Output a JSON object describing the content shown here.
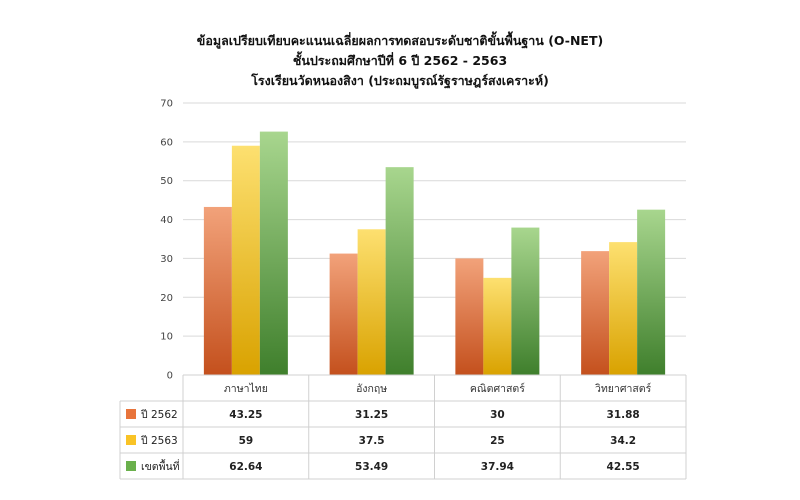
{
  "chart_data": {
    "type": "bar",
    "title": [
      "ข้อมูลเปรียบเทียบคะแนนเฉลี่ยผลการทดสอบระดับชาติขั้นพื้นฐาน (O-NET)",
      "ชั้นประถมศึกษาปีที่ 6 ปี 2562 - 2563",
      "โรงเรียนวัดหนองสิงา (ประถมบูรณ์รัฐราษฎร์สงเคราะห์)"
    ],
    "categories": [
      "ภาษาไทย",
      "อังกฤษ",
      "คณิตศาสตร์",
      "วิทยาศาสตร์"
    ],
    "series": [
      {
        "name": "ปี 2562",
        "values": [
          43.25,
          31.25,
          30,
          31.88
        ],
        "color": "#e8743b",
        "value_labels": [
          "43.25",
          "31.25",
          "30",
          "31.88"
        ]
      },
      {
        "name": "ปี 2563",
        "values": [
          59,
          37.5,
          25,
          34.2
        ],
        "color": "#f9c326",
        "value_labels": [
          "59",
          "37.5",
          "25",
          "34.2"
        ]
      },
      {
        "name": "เขตพื้นที่",
        "values": [
          62.64,
          53.49,
          37.94,
          42.55
        ],
        "color": "#6ab04c",
        "value_labels": [
          "62.64",
          "53.49",
          "37.94",
          "42.55"
        ]
      }
    ],
    "y_ticks": [
      "0",
      "10",
      "20",
      "30",
      "40",
      "50",
      "60",
      "70"
    ],
    "ylim": [
      0,
      70
    ],
    "grid": true,
    "legend": "data-table-below"
  }
}
